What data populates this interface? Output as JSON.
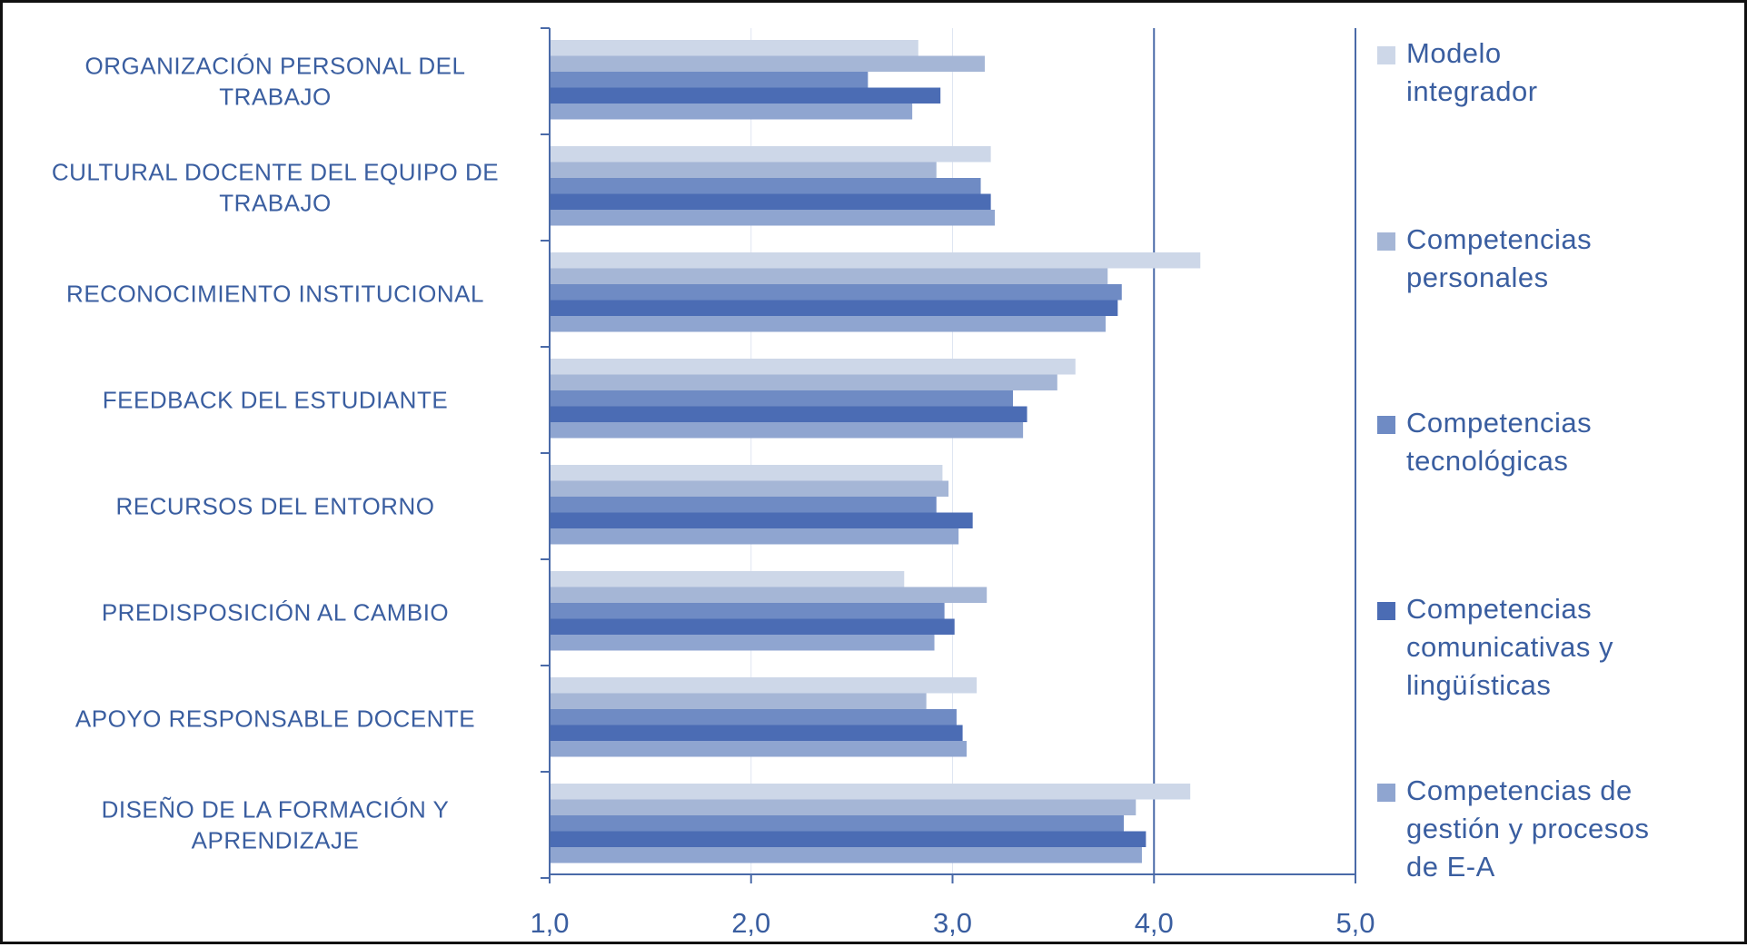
{
  "chart_data": {
    "type": "bar",
    "orientation": "horizontal",
    "title": "",
    "xlabel": "",
    "ylabel": "",
    "xlim": [
      1.0,
      5.0
    ],
    "ticks": [
      1.0,
      2.0,
      3.0,
      4.0,
      5.0
    ],
    "tick_labels": [
      "1,0",
      "2,0",
      "3,0",
      "4,0",
      "5,0"
    ],
    "grid": "vertical major gridlines at 4,0 and 5,0",
    "legend_position": "right",
    "categories": [
      [
        "ORGANIZACIÓN PERSONAL DEL",
        "TRABAJO"
      ],
      [
        "CULTURAL DOCENTE DEL EQUIPO DE",
        "TRABAJO"
      ],
      [
        "RECONOCIMIENTO INSTITUCIONAL"
      ],
      [
        "FEEDBACK DEL ESTUDIANTE"
      ],
      [
        "RECURSOS DEL ENTORNO"
      ],
      [
        "PREDISPOSICIÓN AL CAMBIO"
      ],
      [
        "APOYO RESPONSABLE DOCENTE"
      ],
      [
        "DISEÑO DE LA FORMACIÓN Y",
        "APRENDIZAJE"
      ]
    ],
    "series": [
      {
        "name": [
          "Modelo",
          "integrador"
        ],
        "color": "#cdd7e8",
        "values": [
          2.83,
          3.19,
          4.23,
          3.61,
          2.95,
          2.76,
          3.12,
          4.18
        ]
      },
      {
        "name": [
          "Competencias",
          "personales"
        ],
        "color": "#a5b6d6",
        "values": [
          3.16,
          2.92,
          3.77,
          3.52,
          2.98,
          3.17,
          2.87,
          3.91
        ]
      },
      {
        "name": [
          "Competencias",
          "tecnológicas"
        ],
        "color": "#6f8bc4",
        "values": [
          2.58,
          3.14,
          3.84,
          3.3,
          2.92,
          2.96,
          3.02,
          3.85
        ]
      },
      {
        "name": [
          "Competencias",
          "comunicativas y",
          "lingüísticas"
        ],
        "color": "#4b6cb4",
        "values": [
          2.94,
          3.19,
          3.82,
          3.37,
          3.1,
          3.01,
          3.05,
          3.96
        ]
      },
      {
        "name": [
          "Competencias de",
          "gestión y procesos",
          "de E-A"
        ],
        "color": "#8fa5d0",
        "values": [
          2.8,
          3.21,
          3.76,
          3.35,
          3.03,
          2.91,
          3.07,
          3.94
        ]
      }
    ]
  }
}
